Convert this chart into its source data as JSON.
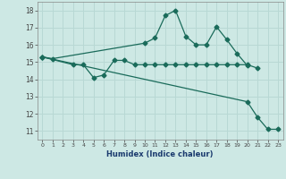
{
  "xlabel": "Humidex (Indice chaleur)",
  "background_color": "#cde8e4",
  "grid_color": "#b8d8d4",
  "line_color": "#1a6b5a",
  "ylim": [
    10.5,
    18.5
  ],
  "xlim": [
    -0.5,
    23.5
  ],
  "yticks": [
    11,
    12,
    13,
    14,
    15,
    16,
    17,
    18
  ],
  "xticks": [
    0,
    1,
    2,
    3,
    4,
    5,
    6,
    7,
    8,
    9,
    10,
    11,
    12,
    13,
    14,
    15,
    16,
    17,
    18,
    19,
    20,
    21,
    22,
    23
  ],
  "line1_x": [
    0,
    1,
    10,
    11,
    12,
    13,
    14,
    15,
    16,
    17,
    18,
    19,
    20
  ],
  "line1_y": [
    15.3,
    15.2,
    16.1,
    16.4,
    17.7,
    18.0,
    16.5,
    16.0,
    16.0,
    17.05,
    16.3,
    15.5,
    14.8
  ],
  "line2_x": [
    0,
    3,
    4,
    5,
    6,
    7,
    8,
    9,
    10,
    11,
    12,
    13,
    14,
    15,
    16,
    17,
    18,
    19,
    20,
    21
  ],
  "line2_y": [
    15.3,
    14.85,
    14.85,
    14.1,
    14.25,
    15.1,
    15.1,
    14.85,
    14.85,
    14.85,
    14.85,
    14.85,
    14.85,
    14.85,
    14.85,
    14.85,
    14.85,
    14.85,
    14.85,
    14.65
  ],
  "line3_x": [
    0,
    20,
    21,
    22,
    23
  ],
  "line3_y": [
    15.3,
    12.7,
    11.8,
    11.1,
    11.1
  ]
}
